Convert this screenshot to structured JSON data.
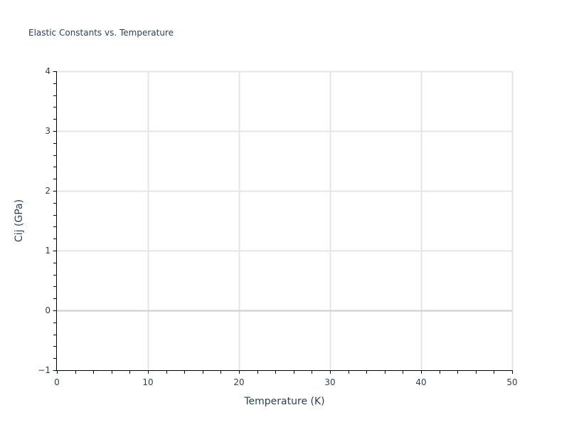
{
  "chart_data": {
    "type": "scatter",
    "title": "Elastic Constants vs. Temperature",
    "xlabel": "Temperature (K)",
    "ylabel": "Cij (GPa)",
    "xlim": [
      0,
      50
    ],
    "ylim": [
      -1,
      4
    ],
    "x_ticks": [
      0,
      10,
      20,
      30,
      40,
      50
    ],
    "y_ticks": [
      -1,
      0,
      1,
      2,
      3,
      4
    ],
    "x_tick_labels": [
      "0",
      "10",
      "20",
      "30",
      "40",
      "50"
    ],
    "y_tick_labels": [
      "−1",
      "0",
      "1",
      "2",
      "3",
      "4"
    ],
    "x_minor_step": 2,
    "y_minor_step": 0.2,
    "grid": true,
    "series": [],
    "colors": {
      "text": "#2a3f5f",
      "grid": "#e5e5e5",
      "zeroline": "#cccccc",
      "axis": "#000000"
    }
  }
}
